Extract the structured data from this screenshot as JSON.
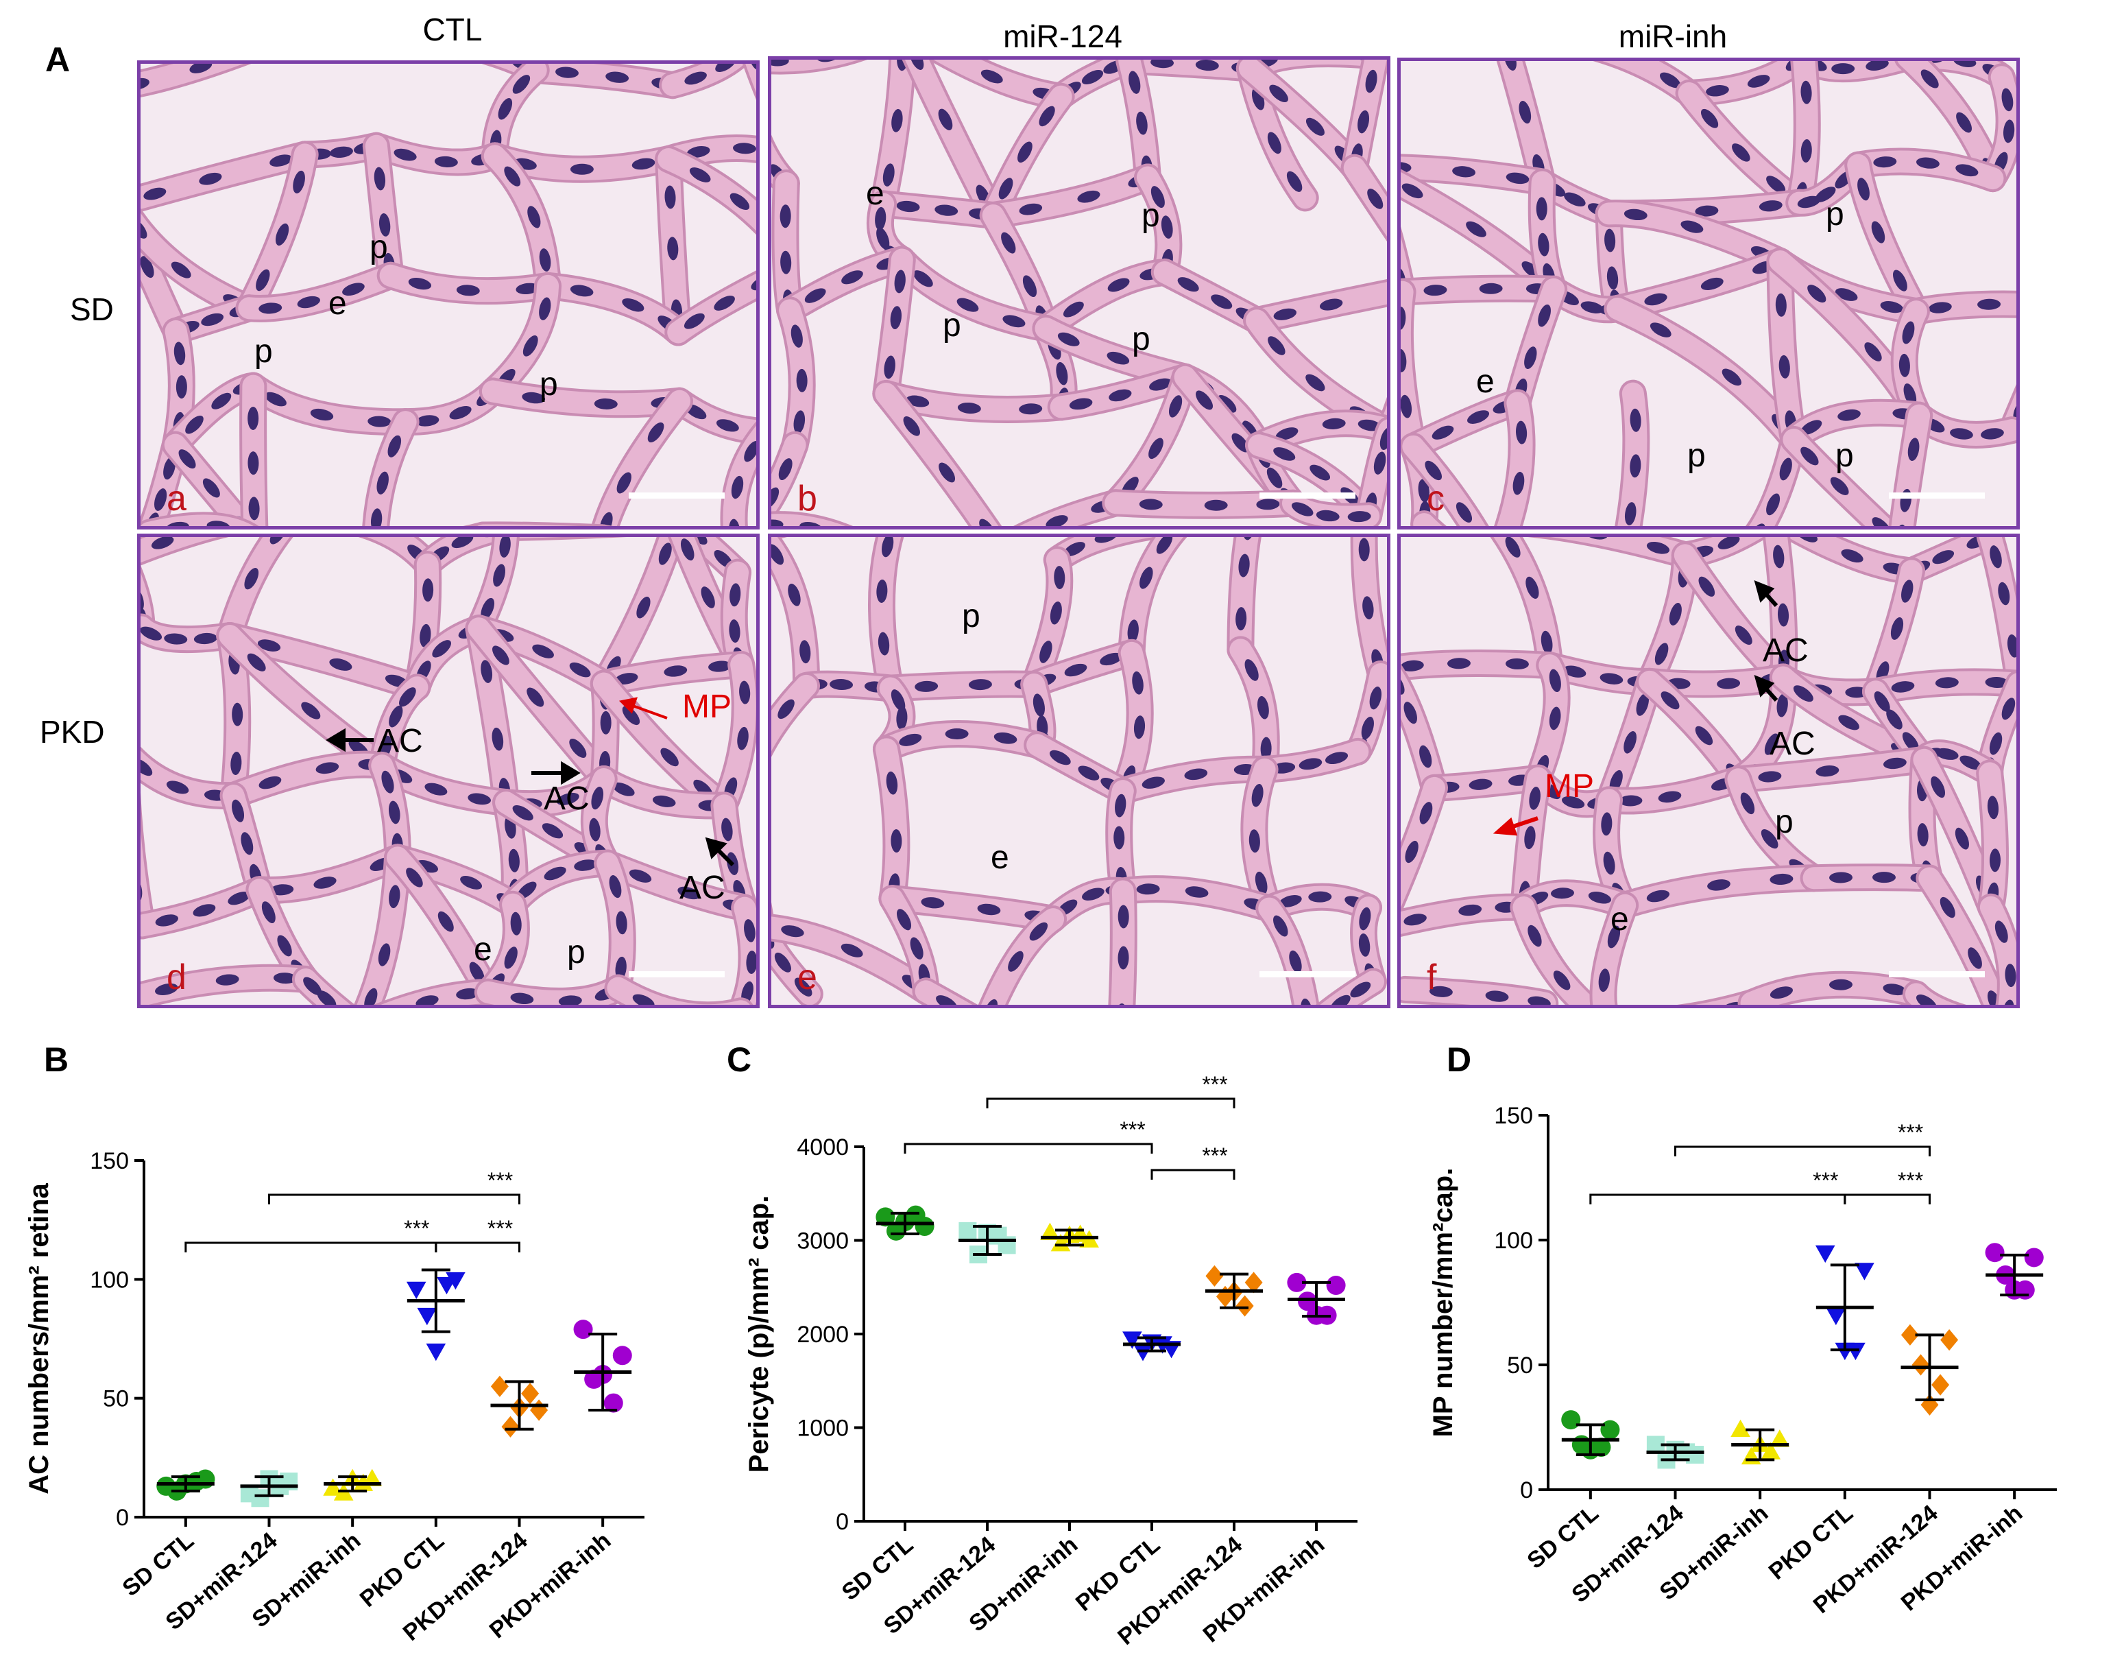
{
  "figure_a": {
    "panel_letter": "A",
    "column_headers": [
      "CTL",
      "miR-124",
      "miR-inh"
    ],
    "row_headers": [
      "SD",
      "PKD"
    ],
    "panels": [
      {
        "sub": "a",
        "labels": [
          "p",
          "e",
          "p",
          "p"
        ]
      },
      {
        "sub": "b",
        "labels": [
          "e",
          "p",
          "p",
          "p"
        ]
      },
      {
        "sub": "c",
        "labels": [
          "p",
          "e",
          "p",
          "p"
        ]
      },
      {
        "sub": "d",
        "labels": [
          "AC",
          "AC",
          "AC",
          "MP",
          "e",
          "p"
        ]
      },
      {
        "sub": "e",
        "labels": [
          "p",
          "e"
        ]
      },
      {
        "sub": "f",
        "labels": [
          "AC",
          "AC",
          "MP",
          "p",
          "e"
        ]
      }
    ],
    "colors": {
      "border": "#7b3fa8",
      "tissue": "#e7b5d2",
      "nucleus": "#3b2a6e",
      "background": "#f4eaf1",
      "sub_label": "#c0141c",
      "mp_label": "#e00000"
    }
  },
  "chart_data": [
    {
      "panel": "B",
      "type": "scatter",
      "ylabel": "AC numbers/mm² retina",
      "ylim": [
        0,
        150
      ],
      "yticks": [
        0,
        50,
        100,
        150
      ],
      "categories": [
        "SD CTL",
        "SD+miR-124",
        "SD+miR-inh",
        "PKD CTL",
        "PKD+miR-124",
        "PKD+miR-inh"
      ],
      "colors": [
        "#1a9a1a",
        "#a9e8d6",
        "#f2e600",
        "#1010e0",
        "#f08000",
        "#a000d0"
      ],
      "markers": [
        "circle",
        "square",
        "triangle-up",
        "triangle-down",
        "diamond",
        "circle"
      ],
      "groups": [
        {
          "mean": 14,
          "sd": 3,
          "points": [
            13,
            16,
            11,
            15,
            14
          ]
        },
        {
          "mean": 13,
          "sd": 4,
          "points": [
            10,
            15,
            8,
            13,
            16
          ]
        },
        {
          "mean": 14,
          "sd": 3,
          "points": [
            12,
            16,
            10,
            14,
            16
          ]
        },
        {
          "mean": 91,
          "sd": 13,
          "points": [
            96,
            100,
            85,
            98,
            70
          ]
        },
        {
          "mean": 47,
          "sd": 10,
          "points": [
            55,
            45,
            38,
            52,
            46
          ]
        },
        {
          "mean": 61,
          "sd": 16,
          "points": [
            79,
            68,
            58,
            48,
            60
          ]
        }
      ],
      "significance": [
        {
          "from": 0,
          "to": 3,
          "label": "***"
        },
        {
          "from": 3,
          "to": 4,
          "label": "***"
        },
        {
          "from": 1,
          "to": 4,
          "label": "***"
        }
      ]
    },
    {
      "panel": "C",
      "type": "scatter",
      "ylabel": "Pericyte (p)/mm² cap.",
      "ylim": [
        0,
        4000
      ],
      "yticks": [
        0,
        1000,
        2000,
        3000,
        4000
      ],
      "categories": [
        "SD CTL",
        "SD+miR-124",
        "SD+miR-inh",
        "PKD CTL",
        "PKD+miR-124",
        "PKD+miR-inh"
      ],
      "colors": [
        "#1a9a1a",
        "#a9e8d6",
        "#f2e600",
        "#1010e0",
        "#f08000",
        "#a000d0"
      ],
      "markers": [
        "circle",
        "square",
        "triangle-up",
        "triangle-down",
        "diamond",
        "circle"
      ],
      "groups": [
        {
          "mean": 3180,
          "sd": 110,
          "points": [
            3250,
            3150,
            3100,
            3270,
            3200
          ]
        },
        {
          "mean": 3000,
          "sd": 150,
          "points": [
            3100,
            2950,
            2850,
            3050,
            3080
          ]
        },
        {
          "mean": 3030,
          "sd": 80,
          "points": [
            3080,
            3000,
            2960,
            3060,
            3050
          ]
        },
        {
          "mean": 1890,
          "sd": 70,
          "points": [
            1950,
            1850,
            1820,
            1900,
            1920
          ]
        },
        {
          "mean": 2460,
          "sd": 180,
          "points": [
            2620,
            2550,
            2400,
            2300,
            2450
          ]
        },
        {
          "mean": 2370,
          "sd": 180,
          "points": [
            2550,
            2520,
            2350,
            2200,
            2200
          ]
        }
      ],
      "significance": [
        {
          "from": 0,
          "to": 3,
          "label": "***"
        },
        {
          "from": 3,
          "to": 4,
          "label": "***"
        },
        {
          "from": 1,
          "to": 4,
          "label": "***"
        }
      ]
    },
    {
      "panel": "D",
      "type": "scatter",
      "ylabel": "MP number/mm²cap.",
      "ylim": [
        0,
        150
      ],
      "yticks": [
        0,
        50,
        100,
        150
      ],
      "categories": [
        "SD CTL",
        "SD+miR-124",
        "SD+miR-inh",
        "PKD CTL",
        "PKD+miR-124",
        "PKD+miR-inh"
      ],
      "colors": [
        "#1a9a1a",
        "#a9e8d6",
        "#f2e600",
        "#1010e0",
        "#f08000",
        "#a000d0"
      ],
      "markers": [
        "circle",
        "square",
        "triangle-up",
        "triangle-down",
        "diamond",
        "circle"
      ],
      "groups": [
        {
          "mean": 20,
          "sd": 6,
          "points": [
            28,
            24,
            18,
            17,
            16
          ]
        },
        {
          "mean": 15,
          "sd": 3,
          "points": [
            18,
            14,
            12,
            15,
            16
          ]
        },
        {
          "mean": 18,
          "sd": 6,
          "points": [
            24,
            20,
            13,
            15,
            18
          ]
        },
        {
          "mean": 73,
          "sd": 17,
          "points": [
            95,
            88,
            70,
            56,
            56
          ]
        },
        {
          "mean": 49,
          "sd": 13,
          "points": [
            62,
            60,
            50,
            42,
            34
          ]
        },
        {
          "mean": 86,
          "sd": 8,
          "points": [
            95,
            93,
            86,
            80,
            80
          ]
        }
      ],
      "significance": [
        {
          "from": 0,
          "to": 3,
          "label": "***"
        },
        {
          "from": 3,
          "to": 4,
          "label": "***"
        },
        {
          "from": 1,
          "to": 4,
          "label": "***"
        }
      ]
    }
  ]
}
